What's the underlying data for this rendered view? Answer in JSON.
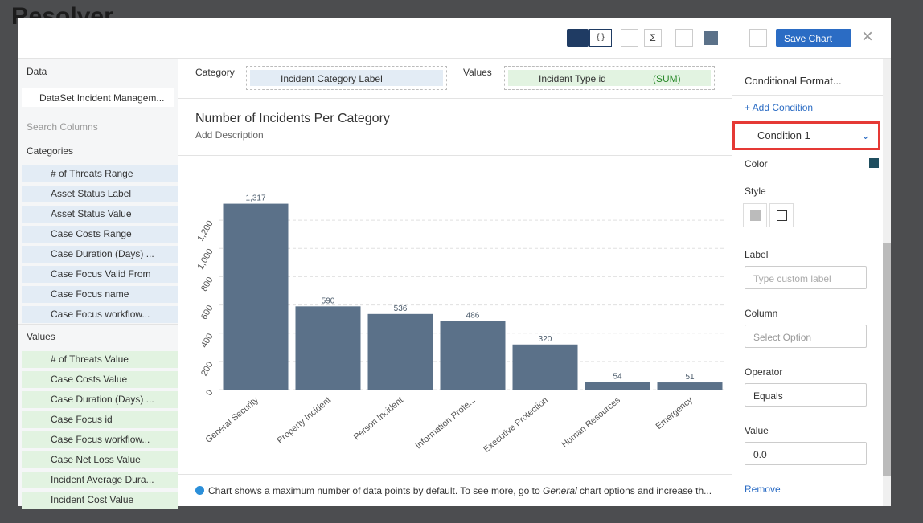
{
  "app_logo": "Resolver",
  "toolbar": {
    "code_icon": "{ }",
    "sum_icon": "Σ",
    "save_button": "Save Chart"
  },
  "left_panel": {
    "data_title": "Data",
    "dataset": "DataSet Incident Managem...",
    "search_placeholder": "Search Columns",
    "categories_title": "Categories",
    "categories": [
      "# of Threats Range",
      "Asset Status Label",
      "Asset Status Value",
      "Case Costs Range",
      "Case Duration (Days) ...",
      "Case Focus Valid From",
      "Case Focus name",
      "Case Focus workflow..."
    ],
    "values_title": "Values",
    "values": [
      "# of Threats Value",
      "Case Costs Value",
      "Case Duration (Days) ...",
      "Case Focus id",
      "Case Focus workflow...",
      "Case Net Loss Value",
      "Incident Average Dura...",
      "Incident Cost Value"
    ]
  },
  "builder": {
    "category_label": "Category",
    "category_field": "Incident Category Label",
    "values_label": "Values",
    "values_field": "Incident Type id",
    "aggregation": "(SUM)"
  },
  "chart_data": {
    "type": "bar",
    "title": "Number of Incidents Per Category",
    "subtitle": "Add Description",
    "categories": [
      "General Security",
      "Property Incident",
      "Person Incident",
      "Information Prote...",
      "Executive Protection",
      "Human Resources",
      "Emergency"
    ],
    "values": [
      1317,
      590,
      536,
      486,
      320,
      54,
      51
    ],
    "value_labels": [
      "1,317",
      "590",
      "536",
      "486",
      "320",
      "54",
      "51"
    ],
    "color": "#5b7189",
    "ylim": [
      0,
      1400
    ],
    "yticks": [
      0,
      200,
      400,
      600,
      800,
      {
        "value": 1000,
        "label": "1,000"
      },
      {
        "value": 1200,
        "label": "1,200"
      }
    ],
    "grid": true
  },
  "footer": {
    "note_start": "Chart shows a maximum number of data points by default. To see more, go to ",
    "note_link": "General",
    "note_end": " chart options and increase th..."
  },
  "right_panel": {
    "section": "Conditional Format...",
    "add_condition": "+ Add Condition",
    "condition": "Condition 1",
    "color_label": "Color",
    "style_label": "Style",
    "label_label": "Label",
    "label_placeholder": "Type custom label",
    "column_label": "Column",
    "column_select": "Select Option",
    "operator_label": "Operator",
    "operator_select": "Equals",
    "value_label": "Value",
    "value_input": "0.0",
    "remove": "Remove"
  }
}
